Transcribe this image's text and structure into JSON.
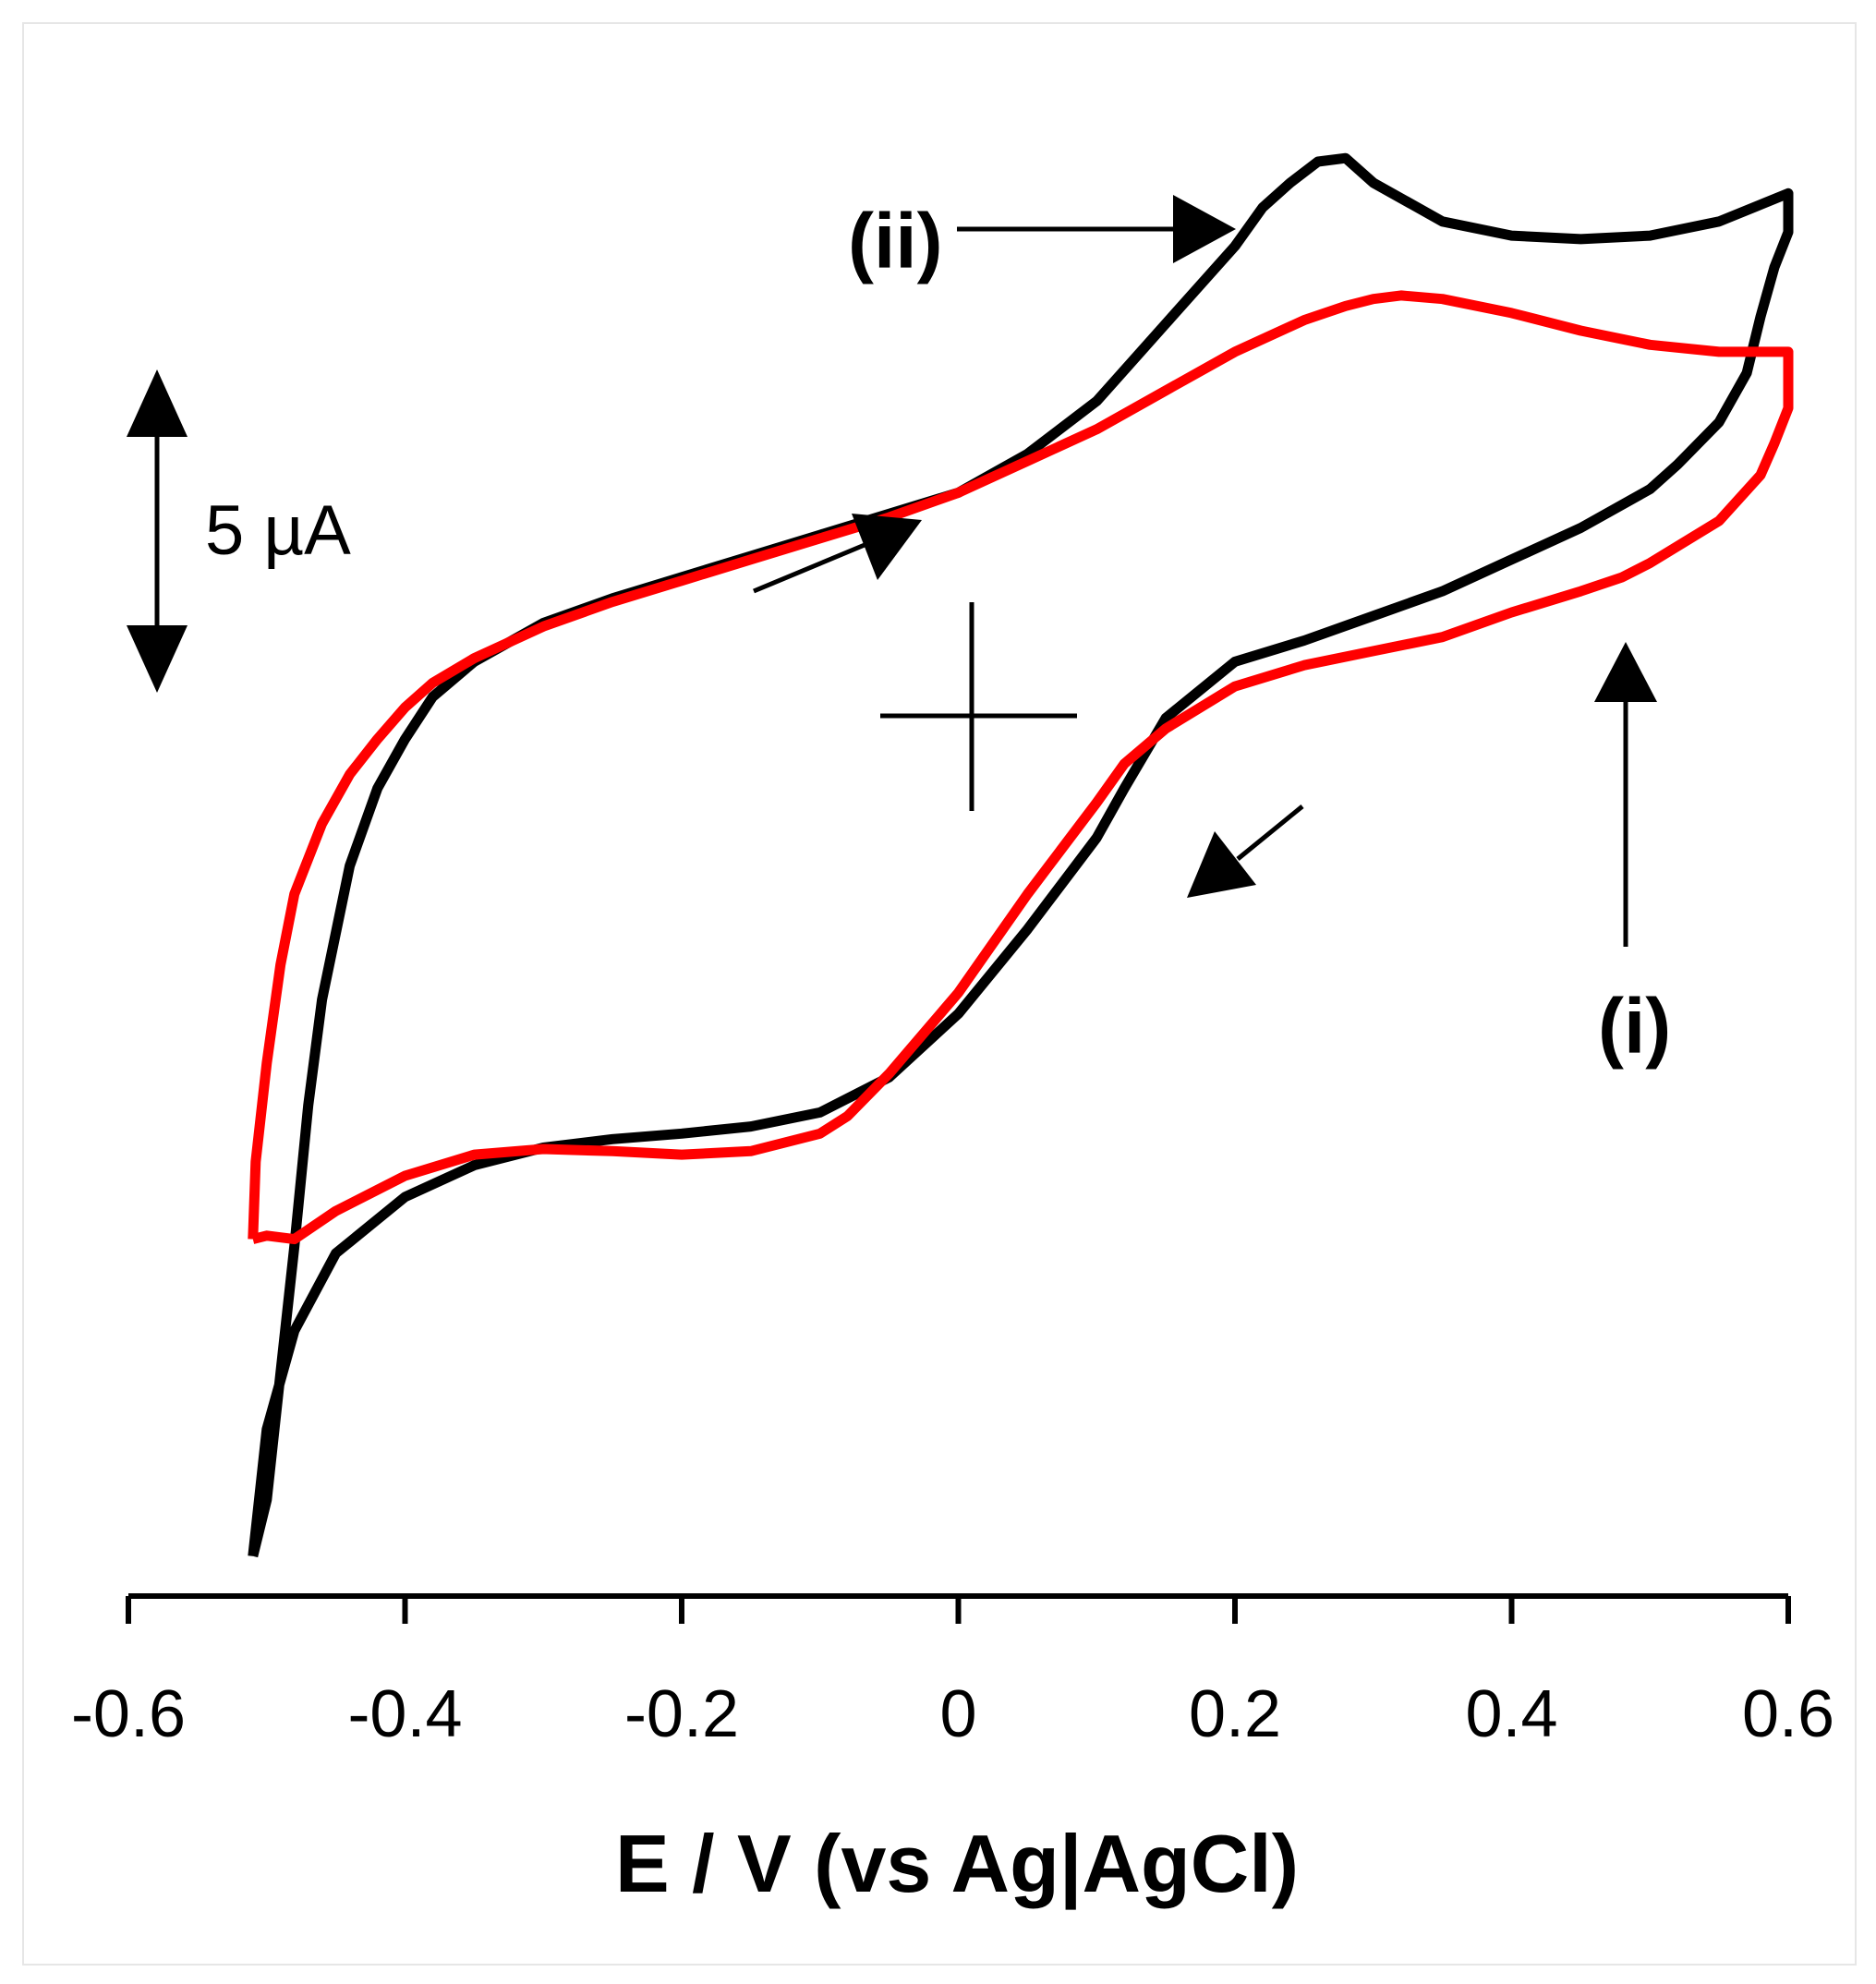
{
  "chart_data": {
    "type": "line",
    "title": "",
    "xlabel": "E / V (vs Ag|AgCl)",
    "ylabel": "",
    "xlim": [
      -0.6,
      0.6
    ],
    "ylim": [
      -6,
      14
    ],
    "x_ticks": [
      -0.6,
      -0.4,
      -0.2,
      0,
      0.2,
      0.4,
      0.6
    ],
    "x_tick_labels": [
      "-0.6",
      "-0.4",
      "-0.2",
      "0",
      "0.2",
      "0.4",
      "0.6"
    ],
    "scale_bar": {
      "label": "5 µA",
      "value_uA": 5
    },
    "colors": {
      "i": "#ff0000",
      "ii": "#000000"
    },
    "series": [
      {
        "name": "(i)",
        "label": "(i)",
        "color": "#ff0000",
        "x": [
          -0.51,
          -0.508,
          -0.5,
          -0.49,
          -0.48,
          -0.46,
          -0.44,
          -0.42,
          -0.4,
          -0.38,
          -0.35,
          -0.3,
          -0.25,
          -0.2,
          -0.15,
          -0.1,
          -0.05,
          0.0,
          0.05,
          0.1,
          0.15,
          0.2,
          0.25,
          0.28,
          0.3,
          0.32,
          0.35,
          0.4,
          0.45,
          0.5,
          0.55,
          0.6,
          0.6,
          0.59,
          0.58,
          0.55,
          0.5,
          0.48,
          0.45,
          0.4,
          0.35,
          0.3,
          0.25,
          0.2,
          0.15,
          0.12,
          0.1,
          0.05,
          0.0,
          -0.05,
          -0.08,
          -0.1,
          -0.15,
          -0.2,
          -0.25,
          -0.3,
          -0.35,
          -0.4,
          -0.45,
          -0.48,
          -0.5,
          -0.51
        ],
        "y": [
          -1.3,
          -0.2,
          1.2,
          2.6,
          3.6,
          4.6,
          5.3,
          5.8,
          6.25,
          6.6,
          6.95,
          7.4,
          7.75,
          8.05,
          8.35,
          8.65,
          8.95,
          9.3,
          9.75,
          10.2,
          10.75,
          11.3,
          11.75,
          11.95,
          12.05,
          12.1,
          12.05,
          11.85,
          11.6,
          11.4,
          11.3,
          11.3,
          10.5,
          10.0,
          9.55,
          8.9,
          8.3,
          8.1,
          7.9,
          7.6,
          7.25,
          7.05,
          6.85,
          6.55,
          5.95,
          5.45,
          4.9,
          3.6,
          2.2,
          1.05,
          0.45,
          0.2,
          -0.05,
          -0.1,
          -0.05,
          -0.02,
          -0.1,
          -0.4,
          -0.9,
          -1.3,
          -1.25,
          -1.3
        ]
      },
      {
        "name": "(ii)",
        "label": "(ii)",
        "color": "#000000",
        "x": [
          -0.51,
          -0.5,
          -0.49,
          -0.48,
          -0.47,
          -0.46,
          -0.44,
          -0.42,
          -0.4,
          -0.38,
          -0.35,
          -0.3,
          -0.25,
          -0.2,
          -0.15,
          -0.1,
          -0.05,
          0.0,
          0.05,
          0.1,
          0.15,
          0.2,
          0.22,
          0.24,
          0.26,
          0.28,
          0.3,
          0.35,
          0.4,
          0.45,
          0.5,
          0.55,
          0.6,
          0.6,
          0.59,
          0.58,
          0.57,
          0.55,
          0.52,
          0.5,
          0.45,
          0.4,
          0.35,
          0.3,
          0.25,
          0.2,
          0.15,
          0.12,
          0.1,
          0.05,
          0.0,
          -0.05,
          -0.1,
          -0.15,
          -0.2,
          -0.25,
          -0.3,
          -0.35,
          -0.4,
          -0.45,
          -0.48,
          -0.5,
          -0.51
        ],
        "y": [
          -5.8,
          -5.0,
          -3.2,
          -1.4,
          0.6,
          2.1,
          4.0,
          5.1,
          5.8,
          6.4,
          6.9,
          7.45,
          7.8,
          8.1,
          8.4,
          8.7,
          9.0,
          9.3,
          9.85,
          10.6,
          11.7,
          12.8,
          13.35,
          13.7,
          14.0,
          14.05,
          13.7,
          13.15,
          12.95,
          12.9,
          12.95,
          13.15,
          13.55,
          13.0,
          12.5,
          11.8,
          11.0,
          10.3,
          9.7,
          9.35,
          8.8,
          8.35,
          7.9,
          7.55,
          7.2,
          6.9,
          6.1,
          5.1,
          4.4,
          3.1,
          1.9,
          1.0,
          0.5,
          0.3,
          0.2,
          0.12,
          0.0,
          -0.25,
          -0.7,
          -1.5,
          -2.6,
          -4.0,
          -5.8
        ]
      }
    ]
  }
}
